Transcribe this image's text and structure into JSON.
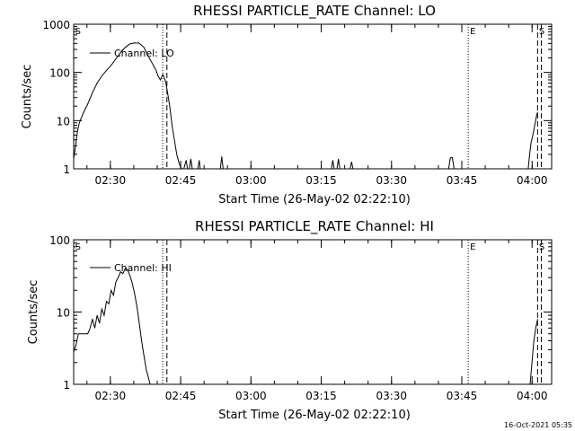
{
  "footer_timestamp": "16-Oct-2021 05:35",
  "chart_data": [
    {
      "type": "line",
      "title": "RHESSI PARTICLE_RATE Channel: LO",
      "xlabel": "Start Time (26-May-02 02:22:10)",
      "ylabel": "Counts/sec",
      "x_unit": "minutes after start",
      "xlim": [
        0,
        102
      ],
      "ylim": [
        1,
        1000
      ],
      "yscale": "log",
      "grid": false,
      "legend": "top-left",
      "x_ticks": [
        {
          "x": 7.83,
          "label": "02:30"
        },
        {
          "x": 22.83,
          "label": "02:45"
        },
        {
          "x": 37.83,
          "label": "03:00"
        },
        {
          "x": 52.83,
          "label": "03:15"
        },
        {
          "x": 67.83,
          "label": "03:30"
        },
        {
          "x": 82.83,
          "label": "03:45"
        },
        {
          "x": 97.83,
          "label": "04:00"
        }
      ],
      "y_ticks": [
        {
          "y": 1,
          "label": "1"
        },
        {
          "y": 10,
          "label": "10"
        },
        {
          "y": 100,
          "label": "100"
        },
        {
          "y": 1000,
          "label": "1000"
        }
      ],
      "markers": [
        {
          "x": 19.0,
          "style": "dotted",
          "label": ""
        },
        {
          "x": 19.9,
          "style": "dashed",
          "label": ""
        },
        {
          "x": 84.2,
          "style": "dotted",
          "label": "E"
        },
        {
          "x": 99.0,
          "style": "dashed",
          "label": ""
        },
        {
          "x": 99.8,
          "style": "dashed",
          "label": ""
        }
      ],
      "corner_labels": [
        {
          "x": 0.3,
          "label": "S"
        },
        {
          "x": 99.3,
          "label": "S"
        }
      ],
      "series": [
        {
          "name": "Channel: LO",
          "points": [
            [
              0,
              1.6
            ],
            [
              0.4,
              3
            ],
            [
              0.8,
              6
            ],
            [
              1.2,
              9
            ],
            [
              2,
              14
            ],
            [
              3,
              22
            ],
            [
              4,
              38
            ],
            [
              5,
              60
            ],
            [
              6,
              85
            ],
            [
              7,
              110
            ],
            [
              8,
              140
            ],
            [
              9,
              190
            ],
            [
              10,
              260
            ],
            [
              11,
              330
            ],
            [
              12,
              390
            ],
            [
              13,
              410
            ],
            [
              14,
              405
            ],
            [
              15,
              330
            ],
            [
              16,
              210
            ],
            [
              17,
              140
            ],
            [
              17.6,
              110
            ],
            [
              18,
              85
            ],
            [
              18.5,
              70
            ],
            [
              19,
              90
            ],
            [
              19.3,
              80
            ],
            [
              19.7,
              60
            ],
            [
              20,
              40
            ],
            [
              20.5,
              20
            ],
            [
              21,
              8
            ],
            [
              21.5,
              4
            ],
            [
              22,
              2
            ],
            [
              22.5,
              1.3
            ],
            [
              23,
              1
            ],
            [
              23.5,
              1
            ],
            [
              24,
              1.5
            ],
            [
              24.3,
              1
            ],
            [
              24.7,
              1
            ],
            [
              25,
              1.6
            ],
            [
              25.3,
              1
            ],
            [
              26,
              1
            ],
            [
              26.5,
              1
            ],
            [
              26.8,
              1.5
            ],
            [
              27,
              1
            ],
            [
              31,
              1
            ],
            [
              31.3,
              1
            ],
            [
              31.6,
              1.8
            ],
            [
              31.9,
              1
            ],
            [
              32.2,
              1
            ],
            [
              40,
              1
            ],
            [
              54,
              1
            ],
            [
              55,
              1
            ],
            [
              55.3,
              1.5
            ],
            [
              55.6,
              1
            ],
            [
              56.2,
              1
            ],
            [
              56.5,
              1.6
            ],
            [
              56.8,
              1
            ],
            [
              59,
              1
            ],
            [
              59.3,
              1.4
            ],
            [
              59.6,
              1
            ],
            [
              80,
              1
            ],
            [
              80.4,
              1.7
            ],
            [
              80.8,
              1.7
            ],
            [
              81.2,
              1
            ],
            [
              97,
              1
            ],
            [
              97.3,
              2
            ],
            [
              97.6,
              3.5
            ],
            [
              98,
              5
            ],
            [
              98.4,
              8
            ],
            [
              98.8,
              13
            ],
            [
              99.0,
              15
            ]
          ]
        }
      ]
    },
    {
      "type": "line",
      "title": "RHESSI PARTICLE_RATE Channel: HI",
      "xlabel": "Start Time (26-May-02 02:22:10)",
      "ylabel": "Counts/sec",
      "x_unit": "minutes after start",
      "xlim": [
        0,
        102
      ],
      "ylim": [
        1,
        100
      ],
      "yscale": "log",
      "grid": false,
      "legend": "top-left",
      "x_ticks": [
        {
          "x": 7.83,
          "label": "02:30"
        },
        {
          "x": 22.83,
          "label": "02:45"
        },
        {
          "x": 37.83,
          "label": "03:00"
        },
        {
          "x": 52.83,
          "label": "03:15"
        },
        {
          "x": 67.83,
          "label": "03:30"
        },
        {
          "x": 82.83,
          "label": "03:45"
        },
        {
          "x": 97.83,
          "label": "04:00"
        }
      ],
      "y_ticks": [
        {
          "y": 1,
          "label": "1"
        },
        {
          "y": 10,
          "label": "10"
        },
        {
          "y": 100,
          "label": "100"
        }
      ],
      "markers": [
        {
          "x": 19.0,
          "style": "dotted",
          "label": ""
        },
        {
          "x": 19.9,
          "style": "dashed",
          "label": ""
        },
        {
          "x": 84.2,
          "style": "dotted",
          "label": "E"
        },
        {
          "x": 99.0,
          "style": "dashed",
          "label": ""
        },
        {
          "x": 99.8,
          "style": "dashed",
          "label": ""
        }
      ],
      "corner_labels": [
        {
          "x": 0.3,
          "label": "S"
        },
        {
          "x": 99.3,
          "label": "S"
        }
      ],
      "series": [
        {
          "name": "Channel: HI",
          "points": [
            [
              0,
              2.8
            ],
            [
              0.5,
              3.5
            ],
            [
              1,
              5
            ],
            [
              2,
              5
            ],
            [
              3,
              5
            ],
            [
              3.5,
              6
            ],
            [
              4,
              8
            ],
            [
              4.5,
              6
            ],
            [
              5,
              9
            ],
            [
              5.5,
              7
            ],
            [
              6,
              11
            ],
            [
              6.5,
              9
            ],
            [
              7,
              14
            ],
            [
              7.5,
              13
            ],
            [
              8,
              20
            ],
            [
              8.5,
              17
            ],
            [
              9,
              26
            ],
            [
              9.5,
              30
            ],
            [
              10,
              36
            ],
            [
              10.5,
              34
            ],
            [
              11,
              40
            ],
            [
              11.5,
              38
            ],
            [
              12,
              32
            ],
            [
              12.5,
              25
            ],
            [
              13,
              18
            ],
            [
              13.5,
              12
            ],
            [
              14,
              7
            ],
            [
              14.5,
              4
            ],
            [
              15,
              2.5
            ],
            [
              15.5,
              1.6
            ],
            [
              16,
              1.2
            ],
            [
              16.3,
              1
            ],
            [
              97.4,
              1
            ],
            [
              97.8,
              2
            ],
            [
              98.2,
              4
            ],
            [
              98.6,
              6
            ],
            [
              99.0,
              8
            ]
          ]
        }
      ]
    }
  ]
}
